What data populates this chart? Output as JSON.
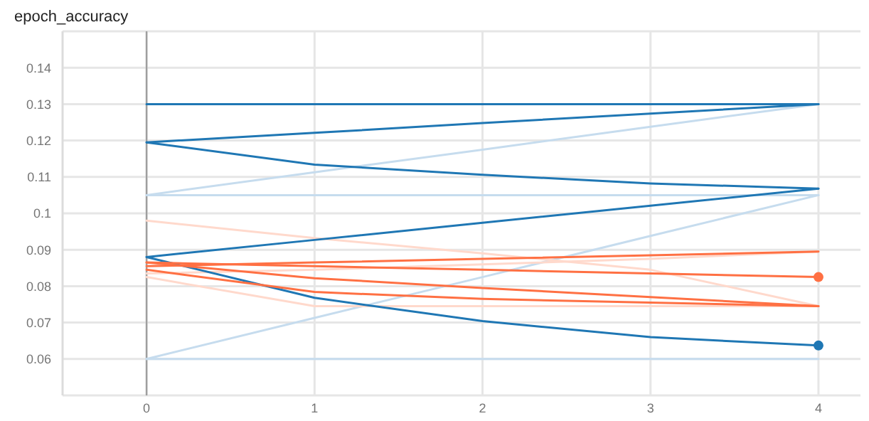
{
  "chart_data": {
    "type": "line",
    "title": "epoch_accuracy",
    "x": [
      0,
      1,
      2,
      3,
      4
    ],
    "xlim": [
      -0.5,
      4.25
    ],
    "xticks": [
      0,
      1,
      2,
      3,
      4
    ],
    "ylim": [
      0.05,
      0.15
    ],
    "yticks": [
      0.06,
      0.07,
      0.08,
      0.09,
      0.1,
      0.11,
      0.12,
      0.13,
      0.14
    ],
    "grid": true,
    "series": [
      {
        "color": "#c6dcee",
        "values": [
          0.105,
          0.1113,
          0.1175,
          0.1238,
          0.13
        ]
      },
      {
        "color": "#c6dcee",
        "values": [
          0.105,
          0.105,
          0.105,
          0.105,
          0.105
        ]
      },
      {
        "color": "#c6dcee",
        "values": [
          0.06,
          0.0713,
          0.0825,
          0.0938,
          0.105
        ]
      },
      {
        "color": "#c6dcee",
        "values": [
          0.06,
          0.06,
          0.06,
          0.06,
          0.06
        ]
      },
      {
        "color": "#ffd9cc",
        "values": [
          0.098,
          0.0932,
          0.089,
          0.0845,
          0.0745
        ]
      },
      {
        "color": "#ffd9cc",
        "values": [
          0.0825,
          0.0745,
          0.0745,
          0.0745,
          0.0745
        ]
      },
      {
        "color": "#ffd9cc",
        "values": [
          0.0835,
          0.0845,
          0.086,
          0.0875,
          0.0895
        ]
      },
      {
        "color": "#1f77b4",
        "values": [
          0.13,
          0.13,
          0.13,
          0.13,
          0.13
        ]
      },
      {
        "color": "#1f77b4",
        "values": [
          0.1195,
          0.1221,
          0.1248,
          0.1274,
          0.13
        ]
      },
      {
        "color": "#1f77b4",
        "values": [
          0.1195,
          0.1134,
          0.1106,
          0.1082,
          0.1068
        ]
      },
      {
        "color": "#1f77b4",
        "values": [
          0.088,
          0.0927,
          0.0974,
          0.1021,
          0.1068
        ]
      },
      {
        "color": "#1f77b4",
        "values": [
          0.088,
          0.0768,
          0.0704,
          0.066,
          0.0637
        ]
      },
      {
        "color": "#ff7043",
        "values": [
          0.0855,
          0.0865,
          0.0875,
          0.0885,
          0.0895
        ]
      },
      {
        "color": "#ff7043",
        "values": [
          0.0865,
          0.0855,
          0.0845,
          0.0835,
          0.0825
        ]
      },
      {
        "color": "#ff7043",
        "values": [
          0.0865,
          0.0822,
          0.0795,
          0.077,
          0.0745
        ]
      },
      {
        "color": "#ff7043",
        "values": [
          0.0845,
          0.0784,
          0.0765,
          0.0755,
          0.0745
        ]
      }
    ]
  }
}
